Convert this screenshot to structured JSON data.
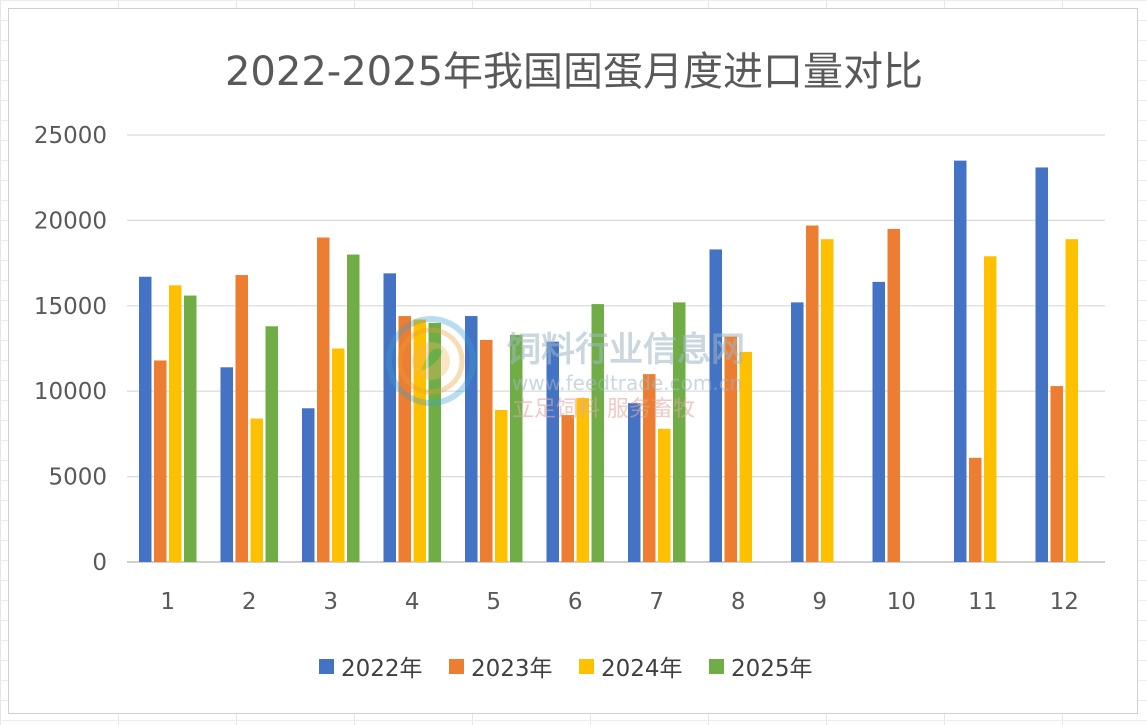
{
  "chart_data": {
    "type": "bar",
    "title": "2022-2025年我国固蛋月度进口量对比",
    "categories": [
      "1",
      "2",
      "3",
      "4",
      "5",
      "6",
      "7",
      "8",
      "9",
      "10",
      "11",
      "12"
    ],
    "ylim": [
      0,
      25000
    ],
    "yticks": [
      "0",
      "5000",
      "10000",
      "15000",
      "20000",
      "25000"
    ],
    "grid": true,
    "legend_position": "bottom",
    "series": [
      {
        "name": "2022年",
        "color": "#4472c4",
        "values": [
          16700,
          11400,
          9000,
          16900,
          14400,
          12900,
          9300,
          18300,
          15200,
          16400,
          23500,
          23100
        ]
      },
      {
        "name": "2023年",
        "color": "#ed7d31",
        "values": [
          11800,
          16800,
          19000,
          14400,
          13000,
          8600,
          11000,
          13200,
          19700,
          19500,
          6100,
          10300
        ]
      },
      {
        "name": "2024年",
        "color": "#ffc000",
        "values": [
          16200,
          8400,
          12500,
          14200,
          8900,
          9600,
          7800,
          12300,
          18900,
          null,
          17900,
          18900
        ]
      },
      {
        "name": "2025年",
        "color": "#70ad47",
        "values": [
          15600,
          13800,
          18000,
          14000,
          13300,
          15100,
          15200,
          null,
          null,
          null,
          null,
          null
        ]
      }
    ]
  },
  "watermark": {
    "title": "饲料行业信息网",
    "url": "www.feedtrade.com.cn",
    "slogan": "立足饲料  服务畜牧"
  }
}
